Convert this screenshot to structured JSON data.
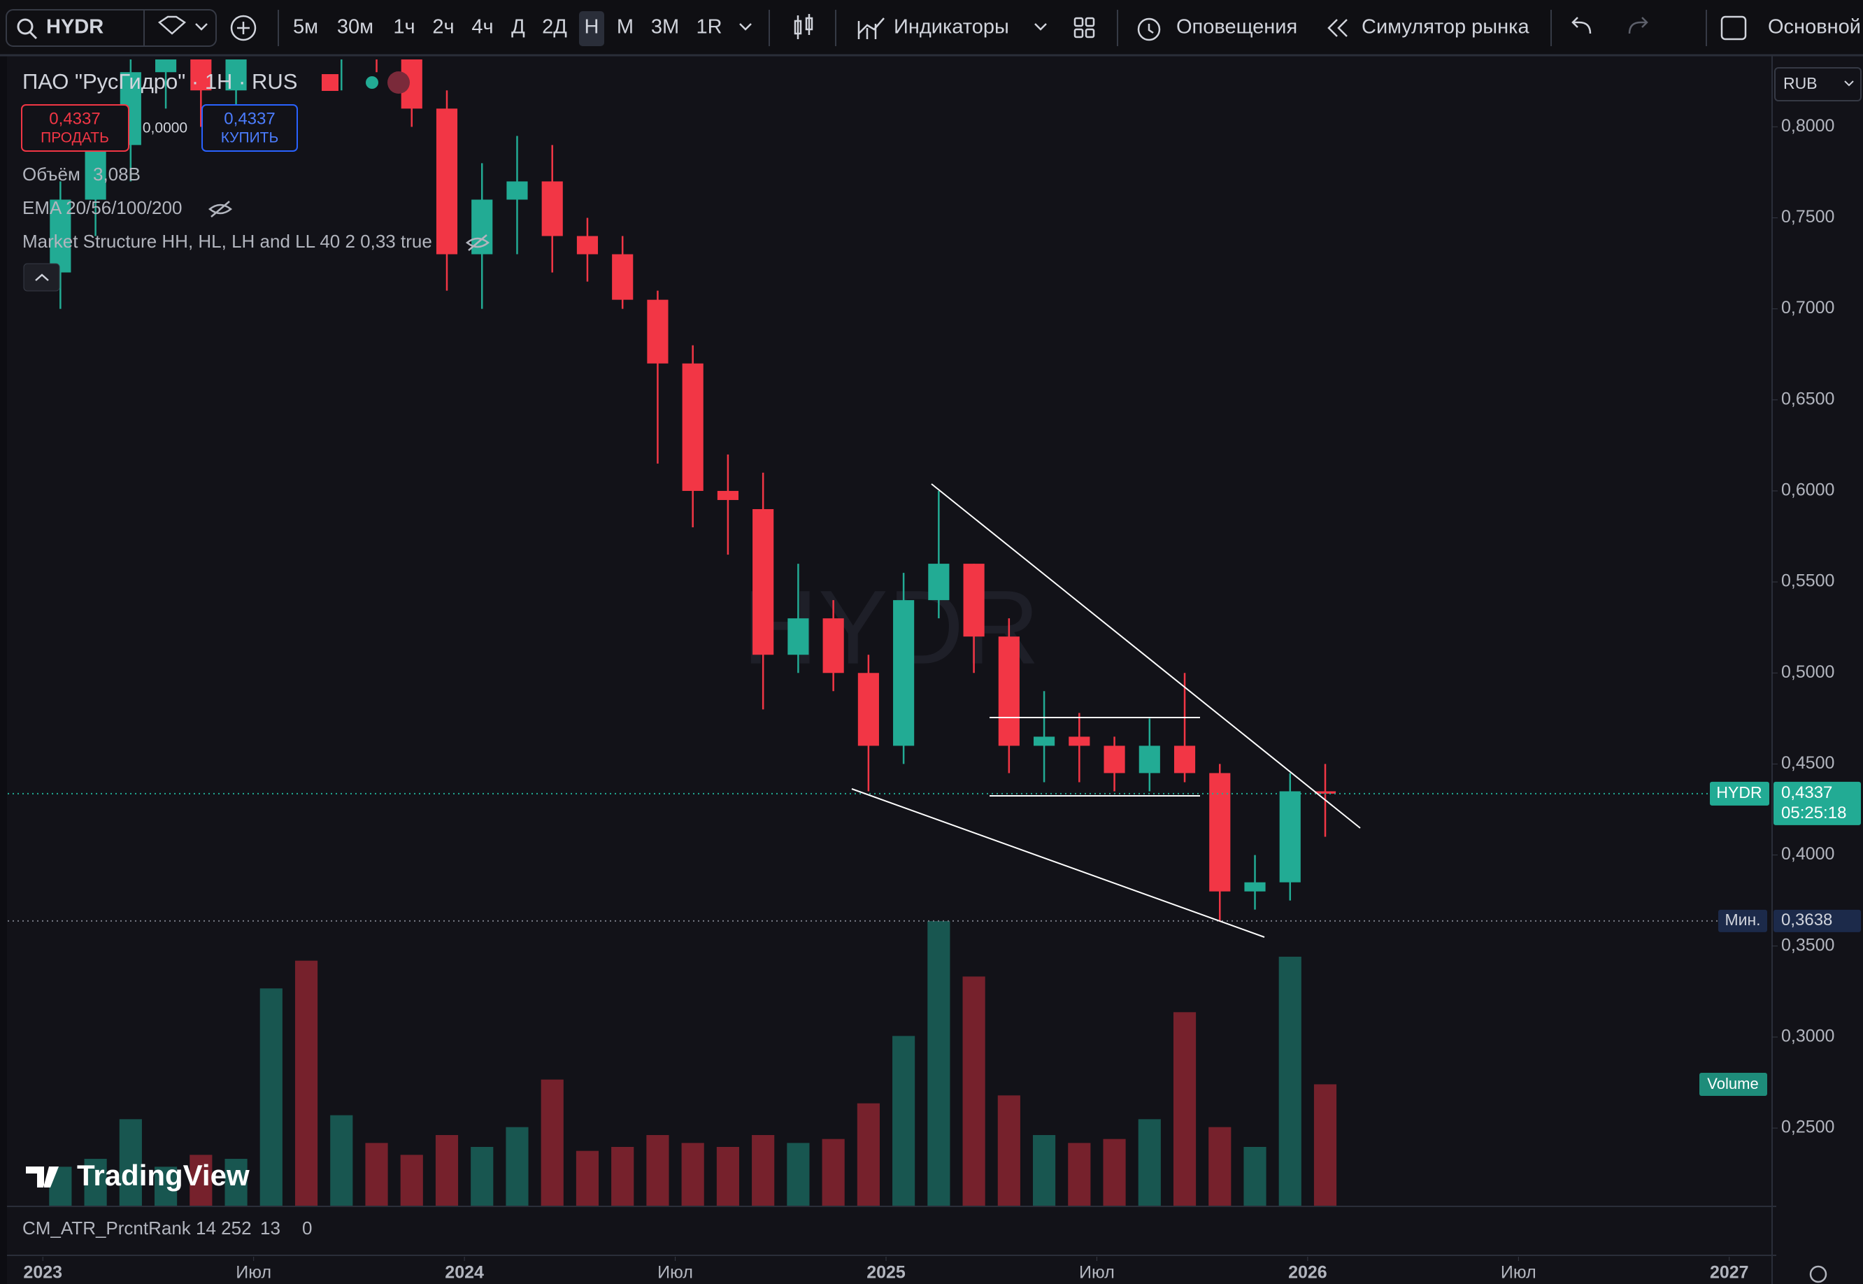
{
  "toolbar": {
    "symbol": "HYDR",
    "intervals": [
      "5м",
      "30м",
      "1ч",
      "2ч",
      "4ч",
      "Д",
      "2Д",
      "Н",
      "М",
      "3М",
      "1R"
    ],
    "active_interval_index": 7,
    "indicators": "Индикаторы",
    "alerts": "Оповещения",
    "replay": "Симулятор рынка",
    "layout": "Основной"
  },
  "legend": {
    "title": "ПАО \"РусГидро\" · 1Н · RUS",
    "sell_price": "0,4337",
    "sell": "ПРОДАТЬ",
    "spread": "0,0000",
    "buy_price": "0,4337",
    "buy": "КУПИТЬ",
    "volume_label": "Объём",
    "volume_value": "3,08B",
    "ema": "EMA 20/56/100/200",
    "market_structure": "Market Structure HH, HL, LH and LL 40 2 0,33 true"
  },
  "watermark": "HYDR",
  "logo": "TradingView",
  "currency": "RUB",
  "volume_badge": "Volume",
  "atr_pane": {
    "name": "CM_ATR_PrcntRank 14 252",
    "value1": "13",
    "value2": "0"
  },
  "chart_data": {
    "type": "candlestick",
    "x": [
      "2023-01",
      "2023-02",
      "2023-03",
      "2023-04",
      "2023-05",
      "2023-06",
      "2023-07",
      "2023-08",
      "2023-09",
      "2023-10",
      "2023-11",
      "2023-12",
      "2024-01",
      "2024-02",
      "2024-03",
      "2024-04",
      "2024-05",
      "2024-06",
      "2024-07",
      "2024-08",
      "2024-09",
      "2024-10",
      "2024-11",
      "2024-12",
      "2025-01",
      "2025-02",
      "2025-03",
      "2025-04",
      "2025-05",
      "2025-06",
      "2025-07",
      "2025-08",
      "2025-09",
      "2025-10",
      "2025-11",
      "2025-12",
      "2026-01"
    ],
    "open": [
      0.72,
      0.76,
      0.79,
      0.83,
      0.85,
      0.82,
      0.86,
      0.87,
      0.85,
      0.86,
      0.84,
      0.81,
      0.73,
      0.76,
      0.77,
      0.74,
      0.73,
      0.705,
      0.67,
      0.6,
      0.59,
      0.51,
      0.53,
      0.5,
      0.46,
      0.54,
      0.56,
      0.52,
      0.46,
      0.465,
      0.46,
      0.445,
      0.46,
      0.445,
      0.38,
      0.385,
      0.435
    ],
    "high": [
      0.77,
      0.8,
      0.84,
      0.87,
      0.88,
      0.87,
      0.89,
      0.9,
      0.88,
      0.88,
      0.86,
      0.82,
      0.78,
      0.795,
      0.79,
      0.75,
      0.74,
      0.71,
      0.68,
      0.62,
      0.61,
      0.56,
      0.54,
      0.51,
      0.555,
      0.6,
      0.56,
      0.53,
      0.49,
      0.478,
      0.465,
      0.475,
      0.5,
      0.45,
      0.4,
      0.445,
      0.45
    ],
    "low": [
      0.7,
      0.74,
      0.77,
      0.81,
      0.8,
      0.81,
      0.84,
      0.84,
      0.82,
      0.83,
      0.8,
      0.71,
      0.7,
      0.73,
      0.72,
      0.715,
      0.7,
      0.615,
      0.58,
      0.565,
      0.48,
      0.5,
      0.49,
      0.435,
      0.45,
      0.53,
      0.5,
      0.445,
      0.44,
      0.44,
      0.435,
      0.435,
      0.44,
      0.3638,
      0.37,
      0.375,
      0.41
    ],
    "close": [
      0.76,
      0.79,
      0.83,
      0.85,
      0.82,
      0.86,
      0.87,
      0.85,
      0.86,
      0.84,
      0.81,
      0.73,
      0.76,
      0.77,
      0.74,
      0.73,
      0.705,
      0.67,
      0.6,
      0.595,
      0.51,
      0.53,
      0.5,
      0.46,
      0.54,
      0.56,
      0.52,
      0.46,
      0.465,
      0.46,
      0.445,
      0.46,
      0.445,
      0.38,
      0.385,
      0.435,
      0.4337
    ],
    "volume": [
      1.0,
      1.2,
      2.2,
      1.0,
      1.3,
      1.2,
      5.5,
      6.2,
      2.3,
      1.6,
      1.3,
      1.8,
      1.5,
      2.0,
      3.2,
      1.4,
      1.5,
      1.8,
      1.6,
      1.5,
      1.8,
      1.6,
      1.7,
      2.6,
      4.3,
      7.2,
      5.8,
      2.8,
      1.8,
      1.6,
      1.7,
      2.2,
      4.9,
      2.0,
      1.5,
      6.3,
      3.08
    ],
    "up_color": "#22ab94",
    "down_color": "#f23645",
    "xlim": [
      "2022-12",
      "2027-02"
    ],
    "xticks": [
      {
        "value": "2023-01",
        "label": "2023"
      },
      {
        "value": "2023-07",
        "label": "Июл"
      },
      {
        "value": "2024-01",
        "label": "2024"
      },
      {
        "value": "2024-07",
        "label": "Июл"
      },
      {
        "value": "2025-01",
        "label": "2025"
      },
      {
        "value": "2025-07",
        "label": "Июл"
      },
      {
        "value": "2026-01",
        "label": "2026"
      },
      {
        "value": "2026-07",
        "label": "Июл"
      },
      {
        "value": "2027-01",
        "label": "2027"
      }
    ],
    "ylim": [
      0.207,
      0.837
    ],
    "yticks": [
      {
        "value": 0.25,
        "label": "0,2500"
      },
      {
        "value": 0.3,
        "label": "0,3000"
      },
      {
        "value": 0.35,
        "label": "0,3500"
      },
      {
        "value": 0.4,
        "label": "0,4000"
      },
      {
        "value": 0.45,
        "label": "0,4500"
      },
      {
        "value": 0.5,
        "label": "0,5000"
      },
      {
        "value": 0.55,
        "label": "0,5500"
      },
      {
        "value": 0.6,
        "label": "0,6000"
      },
      {
        "value": 0.65,
        "label": "0,6500"
      },
      {
        "value": 0.7,
        "label": "0,7000"
      },
      {
        "value": 0.75,
        "label": "0,7500"
      },
      {
        "value": 0.8,
        "label": "0,8000"
      }
    ],
    "last_price": {
      "value": 0.4337,
      "label": "0,4337",
      "name": "HYDR",
      "timer": "05:25:18"
    },
    "min_price": {
      "value": 0.3638,
      "label": "0,3638",
      "name": "Мин."
    }
  }
}
